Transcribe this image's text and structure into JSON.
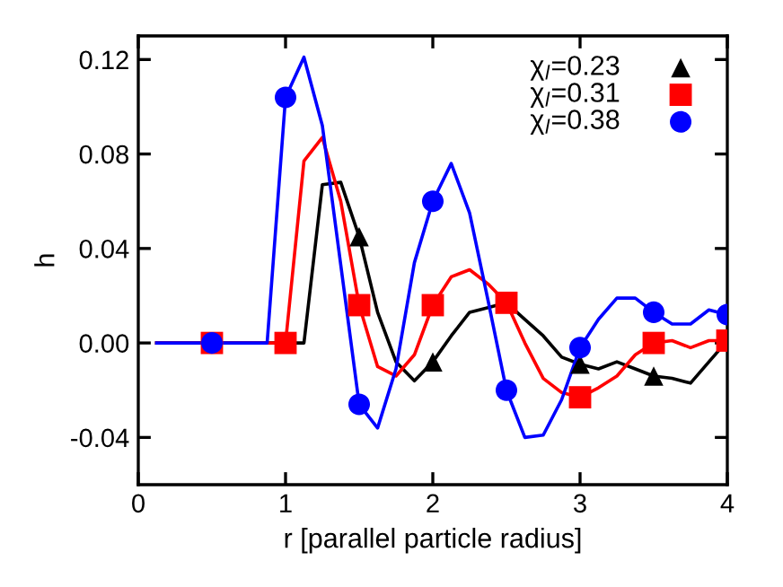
{
  "chart_data": {
    "type": "line",
    "xlabel": "r [parallel particle radius]",
    "ylabel": "h",
    "xlim": [
      0,
      4
    ],
    "ylim": [
      -0.06,
      0.13
    ],
    "xticks": [
      0,
      1,
      2,
      3,
      4
    ],
    "yticks": [
      -0.04,
      {
        "value": 0,
        "label": "0.00"
      },
      0.04,
      0.08,
      0.12
    ],
    "grid": false,
    "legend": "top right",
    "line_style": "solid",
    "series": [
      {
        "color": "#000000",
        "marker": "none",
        "x": [
          0.125,
          1.125,
          1.25,
          1.375,
          1.5,
          1.625,
          1.75,
          1.875,
          2.0,
          2.125,
          2.25,
          2.375,
          2.5,
          2.625,
          2.75,
          2.875,
          3.0,
          3.125,
          3.25,
          3.375,
          3.5,
          3.625,
          3.75,
          3.875,
          4.0
        ],
        "values": [
          0,
          0,
          0.067,
          0.068,
          0.045,
          0.013,
          -0.008,
          -0.016,
          -0.008,
          0.003,
          0.013,
          0.015,
          0.017,
          0.01,
          0.003,
          -0.006,
          -0.009,
          -0.011,
          -0.008,
          -0.011,
          -0.014,
          -0.015,
          -0.017,
          -0.008,
          0.001
        ]
      },
      {
        "color": "#ff0000",
        "marker": "none",
        "x": [
          0.125,
          1.0,
          1.125,
          1.25,
          1.375,
          1.5,
          1.625,
          1.75,
          1.875,
          2.0,
          2.125,
          2.25,
          2.375,
          2.5,
          2.625,
          2.75,
          2.875,
          3.0,
          3.125,
          3.25,
          3.375,
          3.5,
          3.625,
          3.75,
          3.875,
          4.0
        ],
        "values": [
          0,
          0,
          0.077,
          0.087,
          0.06,
          0.016,
          -0.01,
          -0.014,
          -0.005,
          0.016,
          0.028,
          0.031,
          0.025,
          0.017,
          0.0,
          -0.015,
          -0.021,
          -0.023,
          -0.019,
          -0.014,
          -0.005,
          0.0,
          0.001,
          -0.002,
          0.001,
          0.001
        ]
      },
      {
        "color": "#0000ff",
        "marker": "none",
        "x": [
          0.125,
          0.875,
          1.0,
          1.125,
          1.25,
          1.375,
          1.5,
          1.625,
          1.75,
          1.875,
          2.0,
          2.125,
          2.25,
          2.375,
          2.5,
          2.625,
          2.75,
          2.875,
          3.0,
          3.125,
          3.25,
          3.375,
          3.5,
          3.625,
          3.75,
          3.875,
          4.0
        ],
        "values": [
          0,
          0,
          0.104,
          0.121,
          0.092,
          0.033,
          -0.026,
          -0.036,
          -0.011,
          0.034,
          0.06,
          0.076,
          0.055,
          0.018,
          -0.02,
          -0.04,
          -0.039,
          -0.024,
          -0.002,
          0.01,
          0.019,
          0.019,
          0.013,
          0.008,
          0.008,
          0.014,
          0.012
        ]
      },
      {
        "type": "scatter",
        "name": "χ$_{l}$=0.23",
        "color": "#000000",
        "marker": "triangle",
        "x": [
          1.5,
          2.0,
          3.0,
          3.5
        ],
        "values": [
          0.045,
          -0.008,
          -0.009,
          -0.014
        ]
      },
      {
        "type": "scatter",
        "name": "χ$_{l}$=0.31",
        "color": "#ff0000",
        "marker": "square",
        "x": [
          0.5,
          1.0,
          1.5,
          2.0,
          2.5,
          3.0,
          3.5,
          4.0
        ],
        "values": [
          0,
          0,
          0.016,
          0.016,
          0.017,
          -0.023,
          0.0,
          0.001
        ]
      },
      {
        "type": "scatter",
        "name": "χ$_{l}$=0.38",
        "color": "#0000ff",
        "marker": "circle",
        "x": [
          0.5,
          1.0,
          1.5,
          2.0,
          2.5,
          3.0,
          3.5,
          4.0
        ],
        "values": [
          0,
          0.104,
          -0.026,
          0.06,
          -0.02,
          -0.002,
          0.013,
          0.012
        ]
      }
    ]
  }
}
